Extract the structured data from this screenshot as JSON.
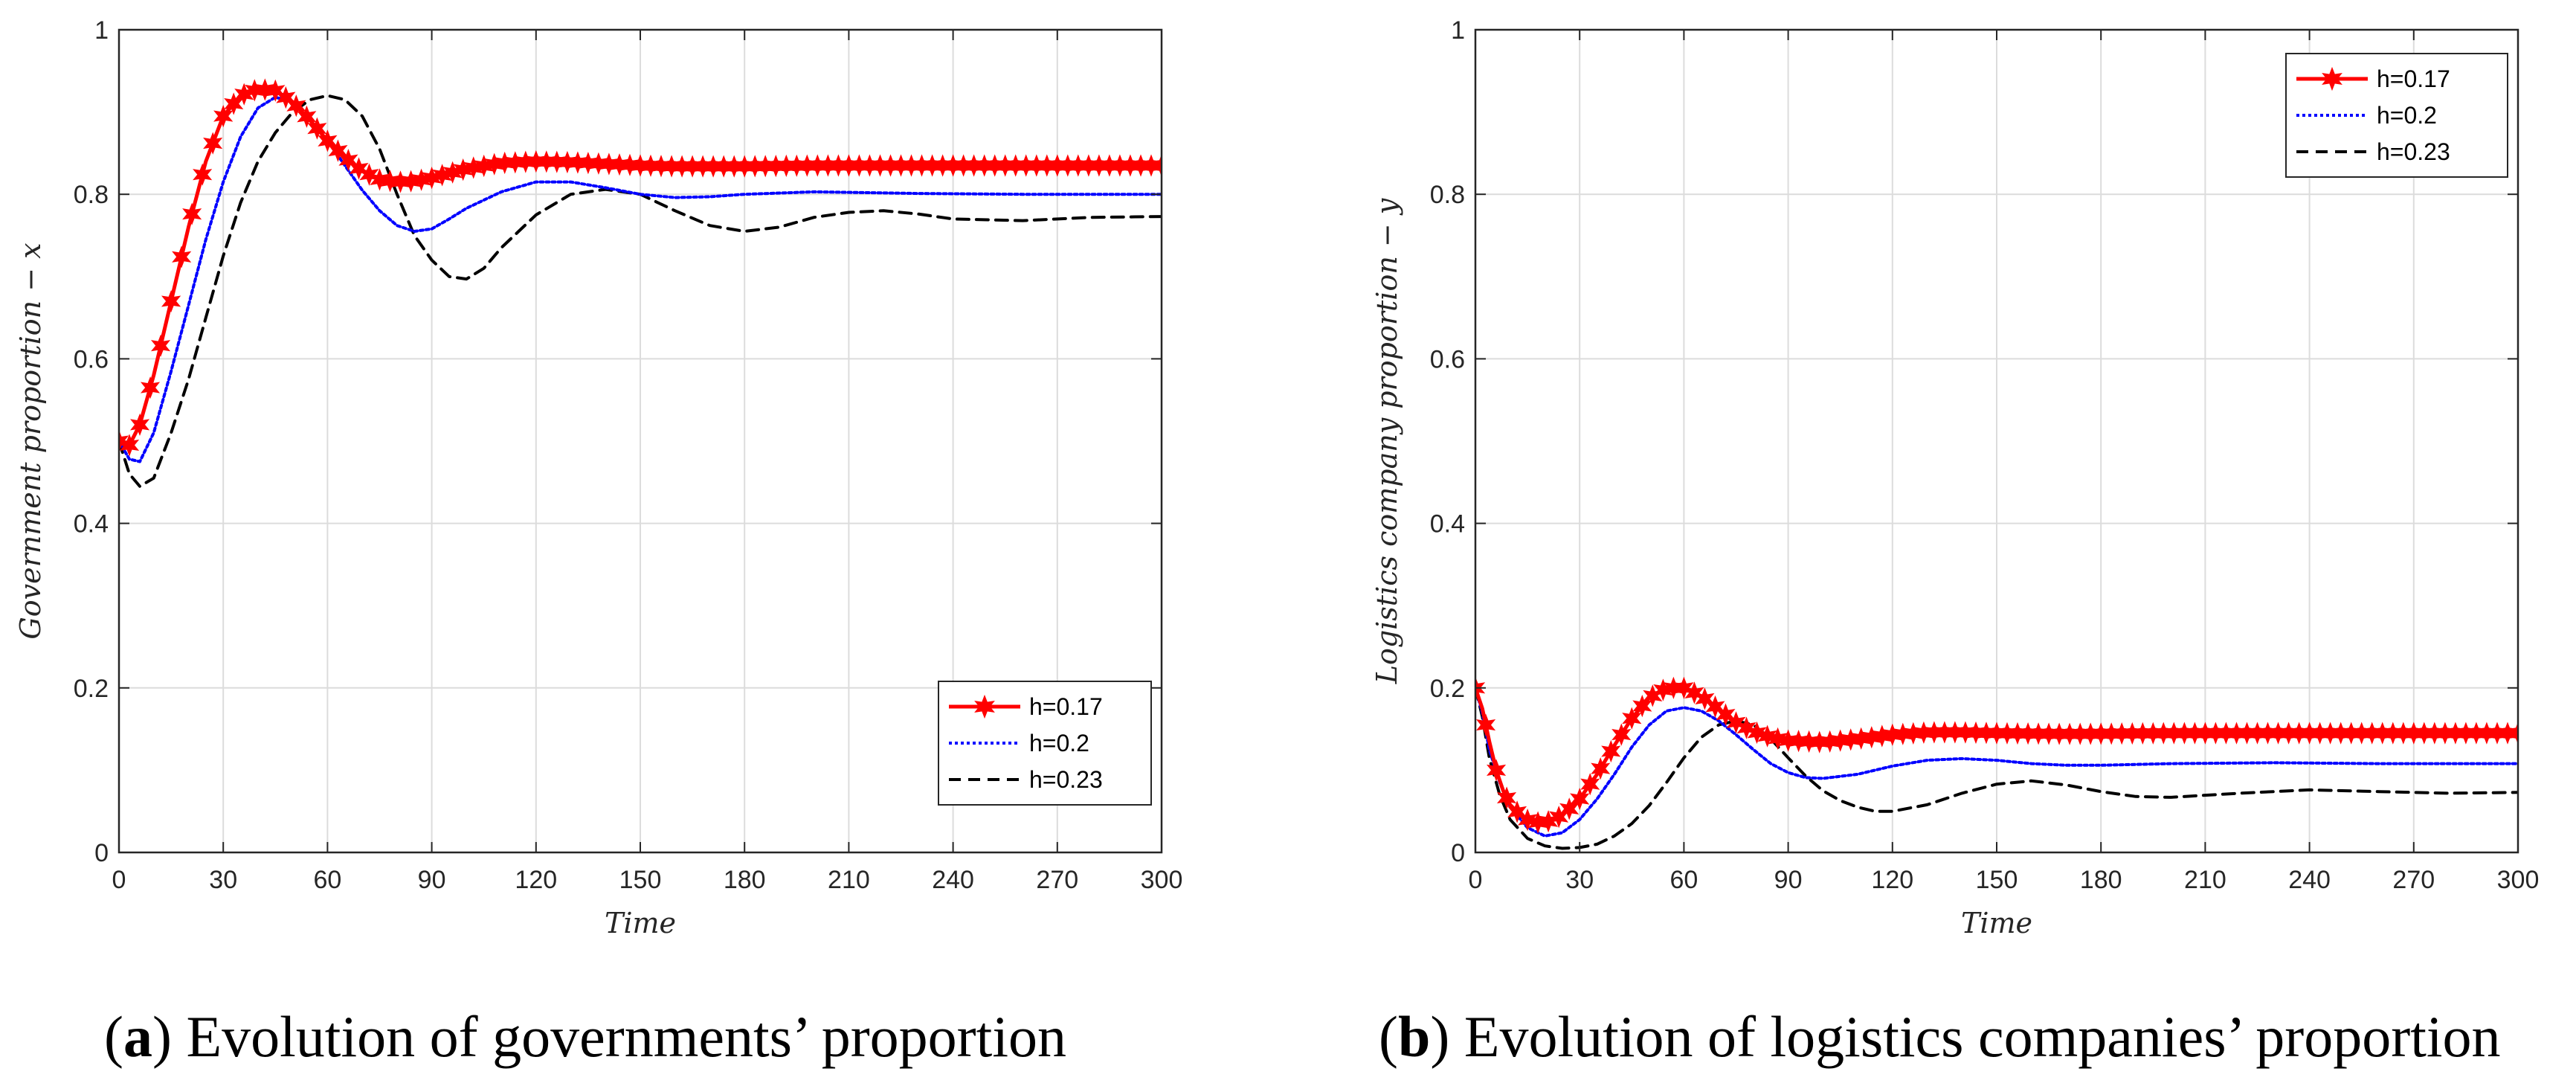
{
  "chart_data": [
    {
      "type": "line",
      "panel_letter": "a",
      "caption": "Evolution of governments’ proportion",
      "xlabel": "Time",
      "ylabel": "Government proportion − x",
      "xlim": [
        0,
        300
      ],
      "ylim": [
        0,
        1
      ],
      "xticks": [
        "0",
        "30",
        "60",
        "90",
        "120",
        "150",
        "180",
        "210",
        "240",
        "270",
        "300"
      ],
      "yticks": [
        "0",
        "0.2",
        "0.4",
        "0.6",
        "0.8",
        "1"
      ],
      "grid": true,
      "legend_position": "bottom-right",
      "series": [
        {
          "name": "h=0.17",
          "color": "#ff0000",
          "style": "solid",
          "marker": "star",
          "points": [
            [
              0,
              0.5
            ],
            [
              3,
              0.495
            ],
            [
              6,
              0.52
            ],
            [
              10,
              0.58
            ],
            [
              15,
              0.67
            ],
            [
              20,
              0.76
            ],
            [
              25,
              0.84
            ],
            [
              30,
              0.895
            ],
            [
              35,
              0.92
            ],
            [
              40,
              0.928
            ],
            [
              45,
              0.926
            ],
            [
              50,
              0.912
            ],
            [
              55,
              0.89
            ],
            [
              60,
              0.865
            ],
            [
              65,
              0.845
            ],
            [
              70,
              0.828
            ],
            [
              75,
              0.818
            ],
            [
              80,
              0.815
            ],
            [
              85,
              0.816
            ],
            [
              90,
              0.82
            ],
            [
              100,
              0.831
            ],
            [
              110,
              0.838
            ],
            [
              120,
              0.84
            ],
            [
              130,
              0.839
            ],
            [
              140,
              0.837
            ],
            [
              150,
              0.835
            ],
            [
              160,
              0.834
            ],
            [
              180,
              0.834
            ],
            [
              200,
              0.835
            ],
            [
              240,
              0.835
            ],
            [
              300,
              0.835
            ]
          ]
        },
        {
          "name": "h=0.2",
          "color": "#0000ff",
          "style": "dotted",
          "marker": "none",
          "points": [
            [
              0,
              0.5
            ],
            [
              3,
              0.478
            ],
            [
              6,
              0.475
            ],
            [
              10,
              0.51
            ],
            [
              15,
              0.585
            ],
            [
              20,
              0.665
            ],
            [
              25,
              0.745
            ],
            [
              30,
              0.815
            ],
            [
              35,
              0.87
            ],
            [
              40,
              0.905
            ],
            [
              45,
              0.918
            ],
            [
              50,
              0.912
            ],
            [
              55,
              0.89
            ],
            [
              60,
              0.865
            ],
            [
              65,
              0.835
            ],
            [
              70,
              0.805
            ],
            [
              75,
              0.78
            ],
            [
              80,
              0.762
            ],
            [
              85,
              0.755
            ],
            [
              90,
              0.758
            ],
            [
              95,
              0.77
            ],
            [
              100,
              0.783
            ],
            [
              110,
              0.803
            ],
            [
              120,
              0.815
            ],
            [
              130,
              0.815
            ],
            [
              140,
              0.808
            ],
            [
              150,
              0.8
            ],
            [
              160,
              0.796
            ],
            [
              170,
              0.797
            ],
            [
              180,
              0.8
            ],
            [
              200,
              0.803
            ],
            [
              230,
              0.801
            ],
            [
              260,
              0.8
            ],
            [
              300,
              0.8
            ]
          ]
        },
        {
          "name": "h=0.23",
          "color": "#000000",
          "style": "dashed",
          "marker": "none",
          "points": [
            [
              0,
              0.5
            ],
            [
              3,
              0.46
            ],
            [
              6,
              0.445
            ],
            [
              10,
              0.455
            ],
            [
              15,
              0.51
            ],
            [
              20,
              0.575
            ],
            [
              25,
              0.65
            ],
            [
              30,
              0.725
            ],
            [
              35,
              0.79
            ],
            [
              40,
              0.84
            ],
            [
              45,
              0.875
            ],
            [
              50,
              0.9
            ],
            [
              55,
              0.915
            ],
            [
              60,
              0.92
            ],
            [
              65,
              0.915
            ],
            [
              70,
              0.895
            ],
            [
              75,
              0.855
            ],
            [
              80,
              0.8
            ],
            [
              85,
              0.75
            ],
            [
              90,
              0.72
            ],
            [
              95,
              0.7
            ],
            [
              100,
              0.697
            ],
            [
              105,
              0.71
            ],
            [
              110,
              0.735
            ],
            [
              120,
              0.775
            ],
            [
              130,
              0.8
            ],
            [
              140,
              0.806
            ],
            [
              150,
              0.8
            ],
            [
              160,
              0.78
            ],
            [
              170,
              0.762
            ],
            [
              180,
              0.755
            ],
            [
              190,
              0.76
            ],
            [
              200,
              0.772
            ],
            [
              210,
              0.778
            ],
            [
              220,
              0.78
            ],
            [
              230,
              0.776
            ],
            [
              240,
              0.77
            ],
            [
              260,
              0.768
            ],
            [
              280,
              0.772
            ],
            [
              300,
              0.773
            ]
          ]
        }
      ]
    },
    {
      "type": "line",
      "panel_letter": "b",
      "caption": "Evolution of logistics companies’ proportion",
      "xlabel": "Time",
      "ylabel": "Logistics company proportion − y",
      "xlim": [
        0,
        300
      ],
      "ylim": [
        0,
        1
      ],
      "xticks": [
        "0",
        "30",
        "60",
        "90",
        "120",
        "150",
        "180",
        "210",
        "240",
        "270",
        "300"
      ],
      "yticks": [
        "0",
        "0.2",
        "0.4",
        "0.6",
        "0.8",
        "1"
      ],
      "grid": true,
      "legend_position": "top-right",
      "series": [
        {
          "name": "h=0.17",
          "color": "#ff0000",
          "style": "solid",
          "marker": "star",
          "points": [
            [
              0,
              0.2
            ],
            [
              2,
              0.175
            ],
            [
              4,
              0.135
            ],
            [
              6,
              0.1
            ],
            [
              8,
              0.075
            ],
            [
              10,
              0.058
            ],
            [
              13,
              0.045
            ],
            [
              16,
              0.037
            ],
            [
              20,
              0.036
            ],
            [
              25,
              0.045
            ],
            [
              30,
              0.065
            ],
            [
              35,
              0.095
            ],
            [
              40,
              0.13
            ],
            [
              45,
              0.163
            ],
            [
              50,
              0.188
            ],
            [
              55,
              0.2
            ],
            [
              60,
              0.2
            ],
            [
              65,
              0.19
            ],
            [
              70,
              0.174
            ],
            [
              75,
              0.158
            ],
            [
              80,
              0.147
            ],
            [
              85,
              0.14
            ],
            [
              90,
              0.136
            ],
            [
              100,
              0.134
            ],
            [
              110,
              0.138
            ],
            [
              120,
              0.143
            ],
            [
              130,
              0.146
            ],
            [
              140,
              0.146
            ],
            [
              150,
              0.145
            ],
            [
              170,
              0.144
            ],
            [
              200,
              0.145
            ],
            [
              240,
              0.145
            ],
            [
              300,
              0.145
            ]
          ]
        },
        {
          "name": "h=0.2",
          "color": "#0000ff",
          "style": "dotted",
          "marker": "none",
          "points": [
            [
              0,
              0.2
            ],
            [
              2,
              0.17
            ],
            [
              4,
              0.125
            ],
            [
              7,
              0.085
            ],
            [
              10,
              0.055
            ],
            [
              15,
              0.03
            ],
            [
              20,
              0.02
            ],
            [
              25,
              0.024
            ],
            [
              30,
              0.04
            ],
            [
              35,
              0.065
            ],
            [
              40,
              0.095
            ],
            [
              45,
              0.128
            ],
            [
              50,
              0.155
            ],
            [
              55,
              0.172
            ],
            [
              60,
              0.176
            ],
            [
              65,
              0.172
            ],
            [
              70,
              0.16
            ],
            [
              75,
              0.143
            ],
            [
              80,
              0.125
            ],
            [
              85,
              0.108
            ],
            [
              90,
              0.097
            ],
            [
              95,
              0.091
            ],
            [
              100,
              0.09
            ],
            [
              110,
              0.095
            ],
            [
              120,
              0.105
            ],
            [
              130,
              0.112
            ],
            [
              140,
              0.114
            ],
            [
              150,
              0.112
            ],
            [
              160,
              0.108
            ],
            [
              170,
              0.106
            ],
            [
              180,
              0.106
            ],
            [
              200,
              0.108
            ],
            [
              230,
              0.109
            ],
            [
              260,
              0.108
            ],
            [
              300,
              0.108
            ]
          ]
        },
        {
          "name": "h=0.23",
          "color": "#000000",
          "style": "dashed",
          "marker": "none",
          "points": [
            [
              0,
              0.2
            ],
            [
              2,
              0.165
            ],
            [
              4,
              0.115
            ],
            [
              7,
              0.07
            ],
            [
              10,
              0.04
            ],
            [
              15,
              0.017
            ],
            [
              20,
              0.008
            ],
            [
              25,
              0.005
            ],
            [
              30,
              0.006
            ],
            [
              35,
              0.01
            ],
            [
              40,
              0.02
            ],
            [
              45,
              0.035
            ],
            [
              50,
              0.057
            ],
            [
              55,
              0.085
            ],
            [
              60,
              0.115
            ],
            [
              65,
              0.14
            ],
            [
              70,
              0.155
            ],
            [
              75,
              0.16
            ],
            [
              80,
              0.155
            ],
            [
              85,
              0.138
            ],
            [
              90,
              0.115
            ],
            [
              95,
              0.093
            ],
            [
              100,
              0.075
            ],
            [
              105,
              0.063
            ],
            [
              110,
              0.055
            ],
            [
              115,
              0.05
            ],
            [
              120,
              0.05
            ],
            [
              130,
              0.058
            ],
            [
              140,
              0.072
            ],
            [
              150,
              0.083
            ],
            [
              160,
              0.087
            ],
            [
              170,
              0.082
            ],
            [
              180,
              0.074
            ],
            [
              190,
              0.068
            ],
            [
              200,
              0.067
            ],
            [
              220,
              0.072
            ],
            [
              240,
              0.076
            ],
            [
              260,
              0.074
            ],
            [
              280,
              0.072
            ],
            [
              300,
              0.073
            ]
          ]
        }
      ]
    }
  ]
}
